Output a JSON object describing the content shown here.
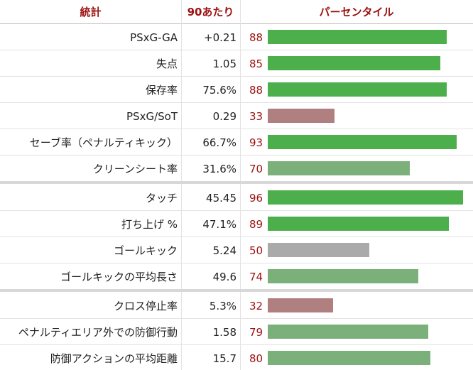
{
  "header": {
    "stat": "統計",
    "per90": "90あたり",
    "percentile": "パーセンタイル"
  },
  "groups": [
    {
      "rows": [
        {
          "stat": "PSxG-GA",
          "per90": "+0.21",
          "percentile": 88,
          "color": "#4caf4c"
        },
        {
          "stat": "失点",
          "per90": "1.05",
          "percentile": 85,
          "color": "#4caf4c"
        },
        {
          "stat": "保存率",
          "per90": "75.6%",
          "percentile": 88,
          "color": "#4caf4c"
        },
        {
          "stat": "PSxG/SoT",
          "per90": "0.29",
          "percentile": 33,
          "color": "#b08080"
        },
        {
          "stat": "セーブ率（ペナルティキック）",
          "per90": "66.7%",
          "percentile": 93,
          "color": "#4caf4c"
        },
        {
          "stat": "クリーンシート率",
          "per90": "31.6%",
          "percentile": 70,
          "color": "#7bb07b"
        }
      ]
    },
    {
      "rows": [
        {
          "stat": "タッチ",
          "per90": "45.45",
          "percentile": 96,
          "color": "#4caf4c"
        },
        {
          "stat": "打ち上げ %",
          "per90": "47.1%",
          "percentile": 89,
          "color": "#4caf4c"
        },
        {
          "stat": "ゴールキック",
          "per90": "5.24",
          "percentile": 50,
          "color": "#aaaaaa"
        },
        {
          "stat": "ゴールキックの平均長さ",
          "per90": "49.6",
          "percentile": 74,
          "color": "#7bb07b"
        }
      ]
    },
    {
      "rows": [
        {
          "stat": "クロス停止率",
          "per90": "5.3%",
          "percentile": 32,
          "color": "#b08080"
        },
        {
          "stat": "ペナルティエリア外での防御行動",
          "per90": "1.58",
          "percentile": 79,
          "color": "#7bb07b"
        },
        {
          "stat": "防御アクションの平均距離",
          "per90": "15.7",
          "percentile": 80,
          "color": "#7bb07b"
        }
      ]
    }
  ]
}
